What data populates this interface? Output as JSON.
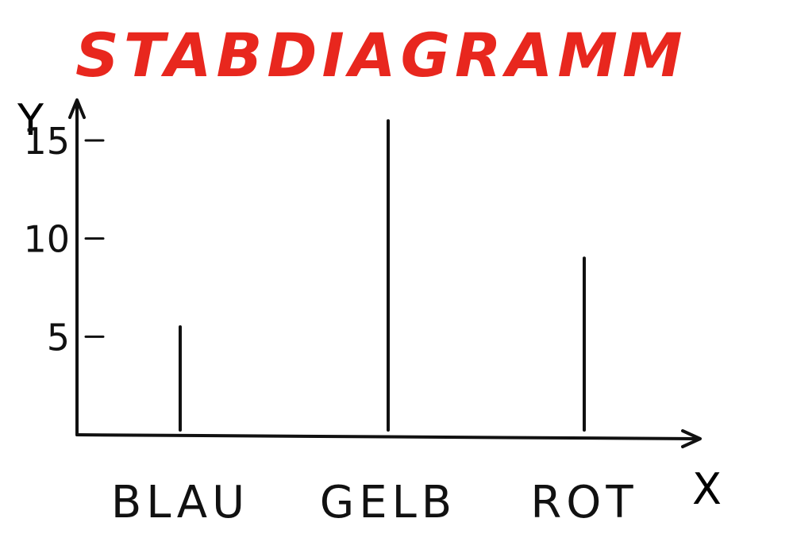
{
  "chart_data": {
    "type": "bar",
    "title": "STABDIAGRAMM",
    "xlabel": "X",
    "ylabel": "Y",
    "categories": [
      "BLAU",
      "GELB",
      "ROT"
    ],
    "values": [
      5.5,
      16,
      9
    ],
    "yticks": [
      "5",
      "10",
      "15"
    ],
    "ylim": [
      0,
      19
    ],
    "grid": false,
    "legend": "none",
    "colors": {
      "title": "#e8271e",
      "ink": "#111111",
      "background": "#ffffff"
    }
  }
}
